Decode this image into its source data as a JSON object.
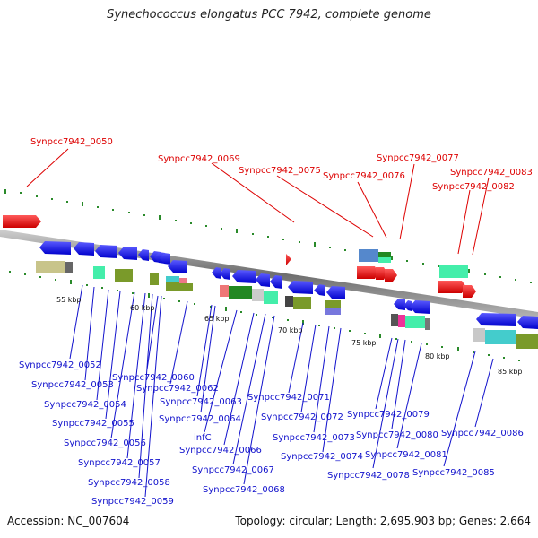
{
  "title": "Synechococcus elongatus PCC 7942, complete genome",
  "footer": {
    "accession": "Accession: NC_007604",
    "summary": "Topology: circular; Length: 2,695,903 bp; Genes: 2,664"
  },
  "colors": {
    "backbone": "#8a8a8a",
    "forward_gene": "#ee0000",
    "reverse_gene": "#1111ee",
    "forward_label": "#dd0000",
    "reverse_label": "#1111cc",
    "dots": "#2a8a2a"
  },
  "scale_labels": [
    "55 kbp",
    "60 kbp",
    "65 kbp",
    "70 kbp",
    "75 kbp",
    "80 kbp",
    "85 kbp"
  ],
  "forward_labels": [
    "Synpcc7942_0050",
    "Synpcc7942_0069",
    "Synpcc7942_0075",
    "Synpcc7942_0076",
    "Synpcc7942_0077",
    "Synpcc7942_0083",
    "Synpcc7942_0082"
  ],
  "reverse_labels": [
    "Synpcc7942_0052",
    "Synpcc7942_0053",
    "Synpcc7942_0054",
    "Synpcc7942_0055",
    "Synpcc7942_0056",
    "Synpcc7942_0057",
    "Synpcc7942_0058",
    "Synpcc7942_0059",
    "Synpcc7942_0060",
    "Synpcc7942_0062",
    "Synpcc7942_0063",
    "Synpcc7942_0064",
    "infC",
    "Synpcc7942_0066",
    "Synpcc7942_0067",
    "Synpcc7942_0068",
    "Synpcc7942_0071",
    "Synpcc7942_0072",
    "Synpcc7942_0073",
    "Synpcc7942_0074",
    "Synpcc7942_0079",
    "Synpcc7942_0080",
    "Synpcc7942_0078",
    "Synpcc7942_0081",
    "Synpcc7942_0086",
    "Synpcc7942_0085"
  ]
}
